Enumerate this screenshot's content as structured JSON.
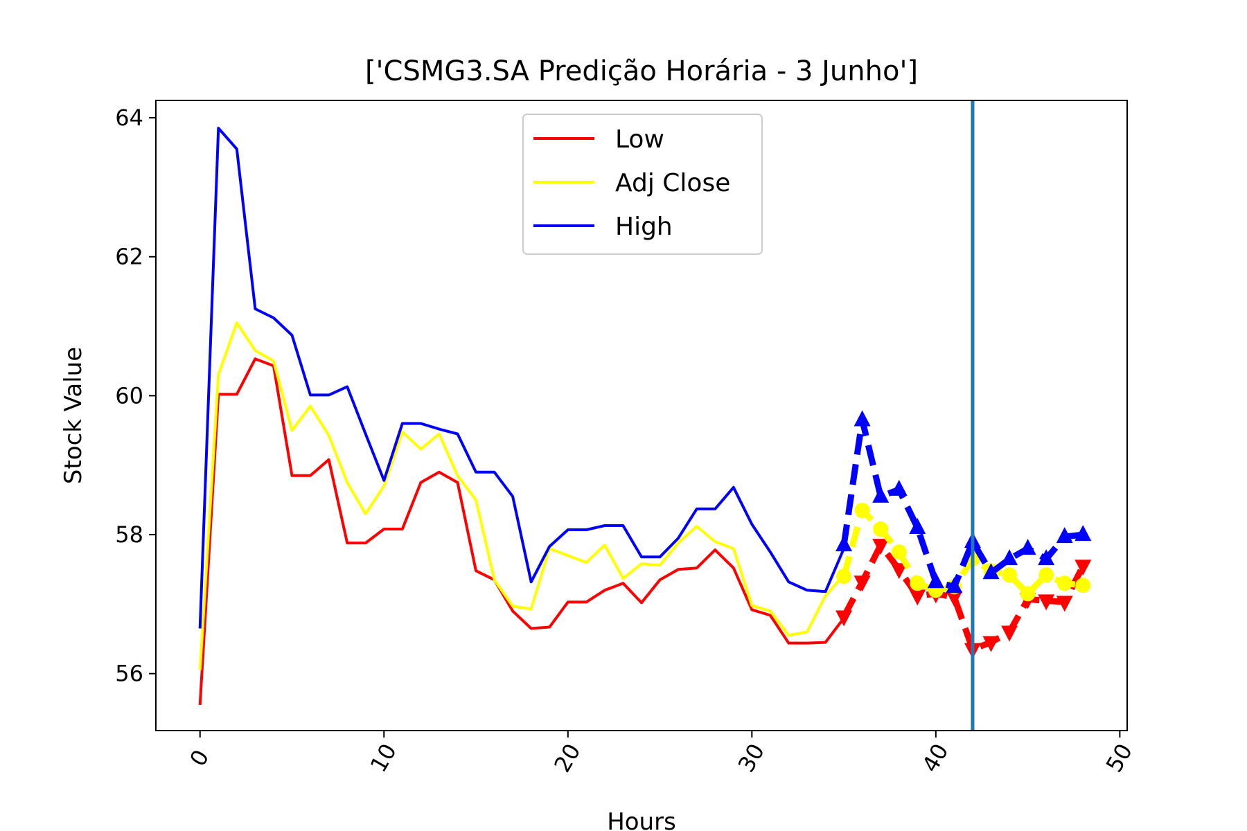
{
  "chart_data": {
    "type": "line",
    "title": "['CSMG3.SA Predição Horária - 3 Junho']",
    "xlabel": "Hours",
    "ylabel": "Stock Value",
    "xlim": [
      -2.4,
      50.4
    ],
    "ylim": [
      55.18,
      64.25
    ],
    "xticks": [
      0,
      10,
      20,
      30,
      40,
      50
    ],
    "yticks": [
      56,
      58,
      60,
      62,
      64
    ],
    "xtick_labels": [
      "0",
      "10",
      "20",
      "30",
      "40",
      "50"
    ],
    "ytick_labels": [
      "56",
      "58",
      "60",
      "62",
      "64"
    ],
    "grid": false,
    "legend_position": "upper center",
    "vline_x": 42,
    "vline_color": "#1f77b4",
    "series": [
      {
        "name": "Low",
        "color": "#ff0000",
        "x": [
          0,
          1,
          2,
          3,
          4,
          5,
          6,
          7,
          8,
          9,
          10,
          11,
          12,
          13,
          14,
          15,
          16,
          17,
          18,
          19,
          20,
          21,
          22,
          23,
          24,
          25,
          26,
          27,
          28,
          29,
          30,
          31,
          32,
          33,
          34,
          35
        ],
        "values": [
          55.55,
          60.02,
          60.02,
          60.53,
          60.43,
          58.85,
          58.85,
          59.08,
          57.88,
          57.88,
          58.08,
          58.08,
          58.75,
          58.9,
          58.75,
          57.48,
          57.35,
          56.9,
          56.65,
          56.67,
          57.03,
          57.03,
          57.2,
          57.3,
          57.02,
          57.35,
          57.5,
          57.52,
          57.78,
          57.52,
          56.92,
          56.84,
          56.44,
          56.44,
          56.45,
          56.8
        ]
      },
      {
        "name": "Adj Close",
        "color": "#ffff00",
        "x": [
          0,
          1,
          2,
          3,
          4,
          5,
          6,
          7,
          8,
          9,
          10,
          11,
          12,
          13,
          14,
          15,
          16,
          17,
          18,
          19,
          20,
          21,
          22,
          23,
          24,
          25,
          26,
          27,
          28,
          29,
          30,
          31,
          32,
          33,
          34,
          35
        ],
        "values": [
          56.05,
          60.3,
          61.05,
          60.65,
          60.5,
          59.5,
          59.85,
          59.43,
          58.75,
          58.3,
          58.7,
          59.48,
          59.23,
          59.45,
          58.85,
          58.5,
          57.35,
          56.97,
          56.93,
          57.8,
          57.7,
          57.6,
          57.85,
          57.37,
          57.58,
          57.56,
          57.88,
          58.12,
          57.9,
          57.8,
          56.98,
          56.9,
          56.55,
          56.6,
          57.12,
          57.42
        ]
      },
      {
        "name": "High",
        "color": "#0000ff",
        "x": [
          0,
          1,
          2,
          3,
          4,
          5,
          6,
          7,
          8,
          9,
          10,
          11,
          12,
          13,
          14,
          15,
          16,
          17,
          18,
          19,
          20,
          21,
          22,
          23,
          24,
          25,
          26,
          27,
          28,
          29,
          30,
          31,
          32,
          33,
          34,
          35
        ],
        "values": [
          56.65,
          63.85,
          63.55,
          61.25,
          61.12,
          60.87,
          60.01,
          60.01,
          60.13,
          59.45,
          58.78,
          59.6,
          59.6,
          59.52,
          59.45,
          58.9,
          58.9,
          58.55,
          57.32,
          57.83,
          58.07,
          58.07,
          58.13,
          58.13,
          57.68,
          57.68,
          57.95,
          58.37,
          58.37,
          58.68,
          58.15,
          57.75,
          57.32,
          57.2,
          57.18,
          57.8
        ]
      }
    ],
    "predicted_series": [
      {
        "name": "Low",
        "color": "#ff0000",
        "marker": "triangle-down",
        "x": [
          35,
          36,
          37,
          38,
          39,
          40,
          41,
          42,
          43,
          44,
          45,
          46,
          47,
          48
        ],
        "values": [
          56.82,
          57.32,
          57.85,
          57.5,
          57.12,
          57.15,
          57.1,
          56.35,
          56.45,
          56.6,
          57.07,
          57.05,
          57.03,
          57.55
        ]
      },
      {
        "name": "Adj Close",
        "color": "#ffff00",
        "marker": "circle",
        "x": [
          35,
          36,
          37,
          38,
          39,
          40,
          41,
          42,
          43,
          44,
          45,
          46,
          47,
          48
        ],
        "values": [
          57.4,
          58.35,
          58.08,
          57.75,
          57.3,
          57.2,
          57.25,
          57.65,
          57.48,
          57.42,
          57.15,
          57.42,
          57.3,
          57.27
        ]
      },
      {
        "name": "High",
        "color": "#0000ff",
        "marker": "triangle-up",
        "x": [
          35,
          36,
          37,
          38,
          39,
          40,
          41,
          42,
          43,
          44,
          45,
          46,
          47,
          48
        ],
        "values": [
          57.85,
          59.65,
          58.55,
          58.65,
          58.1,
          57.32,
          57.25,
          57.9,
          57.45,
          57.65,
          57.8,
          57.65,
          57.97,
          58.0
        ]
      }
    ]
  }
}
